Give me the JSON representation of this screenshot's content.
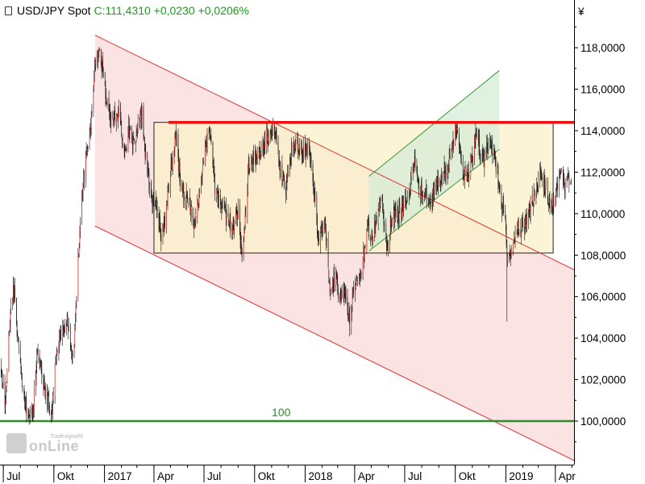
{
  "header": {
    "symbol": "USD/JPY Spot",
    "close": "C:111,4310",
    "change": "+0,0230",
    "change_pct": "+0,0206%"
  },
  "watermark": {
    "brand": "onLine",
    "tag": "Tradesignal®"
  },
  "colors": {
    "candle_up": "#d32f2f",
    "candle_down": "#1a1a1a",
    "channel_fill": "#fbe0e0",
    "channel_line": "#e03030",
    "range_fill": "#fbf0c8",
    "up_channel_fill": "#d7ecd7",
    "up_channel_line": "#3a9a3a",
    "resistance": "#ee1111",
    "support_100": "#2e8b2e"
  },
  "chart_data": {
    "type": "candlestick",
    "currency_label": "¥",
    "y_range": [
      97.9,
      120.3
    ],
    "y_ticks": [
      "118,0000",
      "116,0000",
      "114,0000",
      "112,0000",
      "110,0000",
      "108,0000",
      "106,0000",
      "104,0000",
      "102,0000",
      "100,0000"
    ],
    "y_tick_values": [
      118,
      116,
      114,
      112,
      110,
      108,
      106,
      104,
      102,
      100
    ],
    "x_range": [
      "2016-06-25",
      "2019-05-05"
    ],
    "x_ticks": [
      {
        "label": "Jul",
        "date": "2016-07-01"
      },
      {
        "label": "Okt",
        "date": "2016-10-01"
      },
      {
        "label": "2017",
        "date": "2017-01-01"
      },
      {
        "label": "Apr",
        "date": "2017-04-01"
      },
      {
        "label": "Jul",
        "date": "2017-07-01"
      },
      {
        "label": "Okt",
        "date": "2017-10-01"
      },
      {
        "label": "2018",
        "date": "2018-01-01"
      },
      {
        "label": "Apr",
        "date": "2018-04-01"
      },
      {
        "label": "Jul",
        "date": "2018-07-01"
      },
      {
        "label": "Okt",
        "date": "2018-10-01"
      },
      {
        "label": "2019",
        "date": "2019-01-01"
      },
      {
        "label": "Apr",
        "date": "2019-04-01"
      }
    ],
    "price_path": [
      [
        "2016-06-25",
        102.5
      ],
      [
        "2016-07-05",
        101.0
      ],
      [
        "2016-07-12",
        104.6
      ],
      [
        "2016-07-21",
        106.6
      ],
      [
        "2016-07-28",
        103.5
      ],
      [
        "2016-08-05",
        101.5
      ],
      [
        "2016-08-16",
        100.0
      ],
      [
        "2016-08-24",
        100.5
      ],
      [
        "2016-09-01",
        103.5
      ],
      [
        "2016-09-10",
        102.0
      ],
      [
        "2016-09-27",
        100.3
      ],
      [
        "2016-10-06",
        103.5
      ],
      [
        "2016-10-16",
        104.5
      ],
      [
        "2016-10-28",
        104.8
      ],
      [
        "2016-11-06",
        103.0
      ],
      [
        "2016-11-12",
        106.8
      ],
      [
        "2016-11-20",
        110.5
      ],
      [
        "2016-11-28",
        112.8
      ],
      [
        "2016-12-06",
        114.0
      ],
      [
        "2016-12-15",
        117.5
      ],
      [
        "2016-12-22",
        117.8
      ],
      [
        "2016-12-29",
        117.0
      ],
      [
        "2017-01-05",
        115.5
      ],
      [
        "2017-01-12",
        114.5
      ],
      [
        "2017-01-20",
        114.7
      ],
      [
        "2017-01-28",
        114.8
      ],
      [
        "2017-02-05",
        112.6
      ],
      [
        "2017-02-14",
        114.0
      ],
      [
        "2017-02-22",
        113.5
      ],
      [
        "2017-03-02",
        114.0
      ],
      [
        "2017-03-10",
        114.7
      ],
      [
        "2017-03-17",
        112.7
      ],
      [
        "2017-03-26",
        110.8
      ],
      [
        "2017-04-05",
        110.6
      ],
      [
        "2017-04-14",
        108.8
      ],
      [
        "2017-04-20",
        109.5
      ],
      [
        "2017-04-28",
        111.5
      ],
      [
        "2017-05-10",
        114.0
      ],
      [
        "2017-05-20",
        111.3
      ],
      [
        "2017-06-01",
        110.6
      ],
      [
        "2017-06-14",
        109.6
      ],
      [
        "2017-06-25",
        111.3
      ],
      [
        "2017-07-05",
        113.5
      ],
      [
        "2017-07-11",
        114.2
      ],
      [
        "2017-07-22",
        111.0
      ],
      [
        "2017-08-05",
        110.3
      ],
      [
        "2017-08-20",
        109.3
      ],
      [
        "2017-09-01",
        110.0
      ],
      [
        "2017-09-08",
        107.8
      ],
      [
        "2017-09-20",
        112.2
      ],
      [
        "2017-10-05",
        112.7
      ],
      [
        "2017-10-20",
        113.5
      ],
      [
        "2017-11-06",
        114.3
      ],
      [
        "2017-11-17",
        112.1
      ],
      [
        "2017-11-27",
        111.2
      ],
      [
        "2017-12-10",
        113.5
      ],
      [
        "2017-12-25",
        113.2
      ],
      [
        "2018-01-08",
        113.0
      ],
      [
        "2018-01-18",
        110.8
      ],
      [
        "2018-01-26",
        108.5
      ],
      [
        "2018-02-05",
        109.7
      ],
      [
        "2018-02-16",
        106.2
      ],
      [
        "2018-02-25",
        107.0
      ],
      [
        "2018-03-05",
        105.8
      ],
      [
        "2018-03-15",
        106.2
      ],
      [
        "2018-03-23",
        104.8
      ],
      [
        "2018-03-30",
        106.3
      ],
      [
        "2018-04-12",
        107.2
      ],
      [
        "2018-04-25",
        109.2
      ],
      [
        "2018-05-05",
        109.0
      ],
      [
        "2018-05-20",
        111.0
      ],
      [
        "2018-05-29",
        108.5
      ],
      [
        "2018-06-10",
        110.0
      ],
      [
        "2018-06-22",
        110.0
      ],
      [
        "2018-07-05",
        110.5
      ],
      [
        "2018-07-18",
        112.7
      ],
      [
        "2018-07-27",
        111.0
      ],
      [
        "2018-08-06",
        111.3
      ],
      [
        "2018-08-15",
        110.5
      ],
      [
        "2018-08-25",
        111.3
      ],
      [
        "2018-09-05",
        111.5
      ],
      [
        "2018-09-25",
        113.0
      ],
      [
        "2018-10-04",
        114.5
      ],
      [
        "2018-10-15",
        112.0
      ],
      [
        "2018-10-26",
        111.8
      ],
      [
        "2018-11-08",
        113.9
      ],
      [
        "2018-11-20",
        112.6
      ],
      [
        "2018-11-30",
        113.4
      ],
      [
        "2018-12-10",
        113.2
      ],
      [
        "2018-12-24",
        110.3
      ],
      [
        "2018-12-31",
        109.7
      ],
      [
        "2019-01-03",
        107.5
      ],
      [
        "2019-01-10",
        108.2
      ],
      [
        "2019-01-22",
        109.5
      ],
      [
        "2019-02-01",
        109.2
      ],
      [
        "2019-02-15",
        110.5
      ],
      [
        "2019-02-28",
        111.3
      ],
      [
        "2019-03-06",
        111.9
      ],
      [
        "2019-03-13",
        111.4
      ],
      [
        "2019-03-25",
        110.2
      ],
      [
        "2019-04-02",
        111.2
      ],
      [
        "2019-04-12",
        111.9
      ],
      [
        "2019-04-18",
        111.5
      ],
      [
        "2019-04-24",
        111.8
      ],
      [
        "2019-04-30",
        111.43
      ]
    ],
    "overlays": {
      "down_channel": {
        "upper": [
          [
            "2016-12-15",
            118.6
          ],
          [
            "2019-05-05",
            107.3
          ]
        ],
        "lower": [
          [
            "2016-12-15",
            109.4
          ],
          [
            "2019-05-05",
            98.1
          ]
        ]
      },
      "range_box": {
        "x": [
          "2017-04-01",
          "2019-03-28"
        ],
        "y": [
          108.1,
          114.4
        ]
      },
      "up_channel": {
        "upper": [
          [
            "2018-04-27",
            111.8
          ],
          [
            "2018-12-20",
            116.9
          ]
        ],
        "lower": [
          [
            "2018-04-27",
            108.2
          ],
          [
            "2018-12-20",
            113.1
          ]
        ]
      },
      "resistance_level": 114.4,
      "support_level": {
        "value": 100,
        "label": "100"
      },
      "flash_crash": {
        "date": "2019-01-03",
        "low": 104.8
      }
    }
  }
}
